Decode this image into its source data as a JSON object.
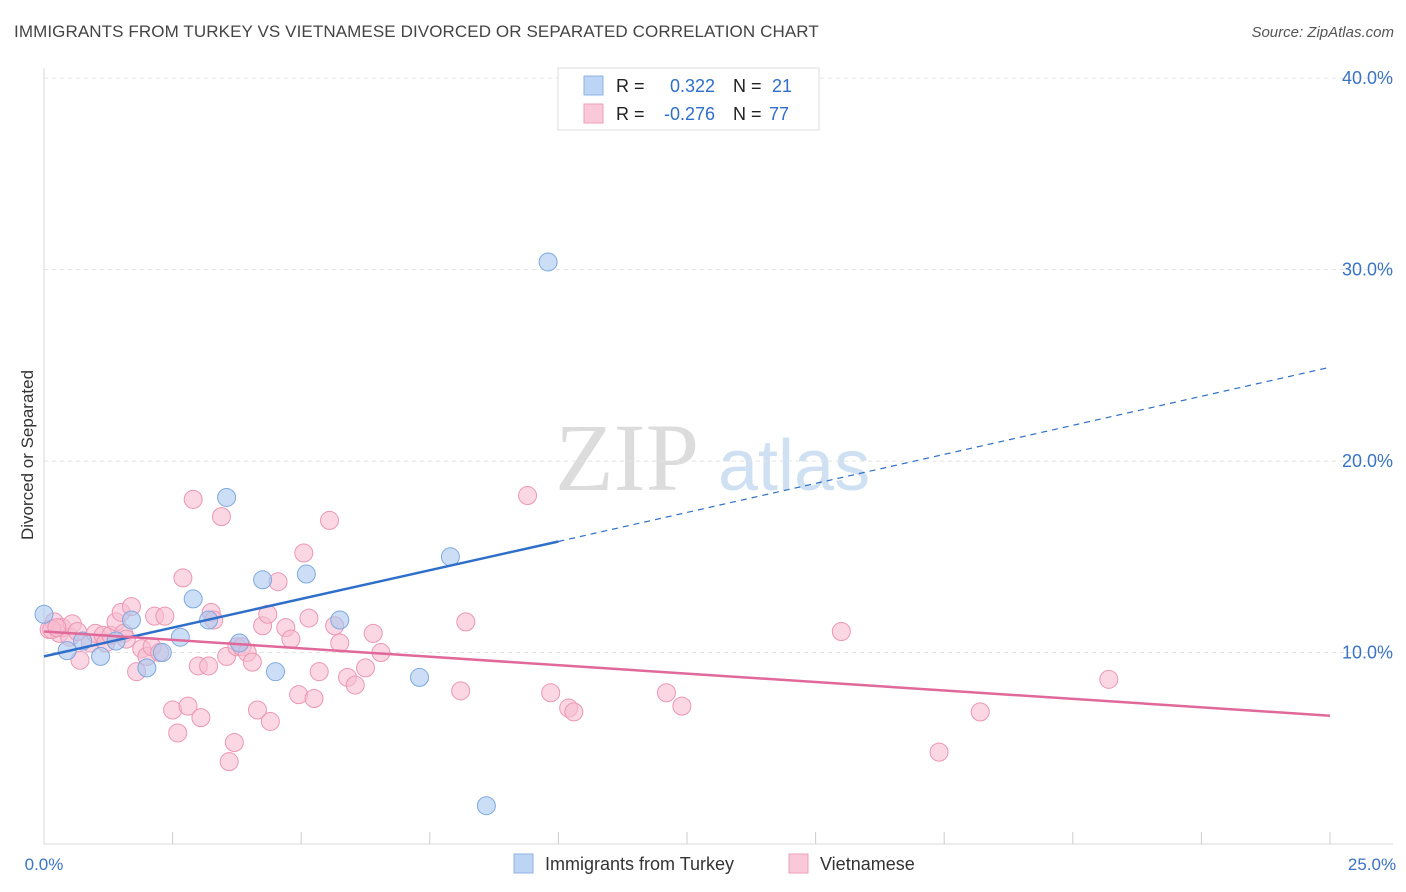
{
  "chart_data": {
    "type": "scatter",
    "title": "IMMIGRANTS FROM TURKEY VS VIETNAMESE DIVORCED OR SEPARATED CORRELATION CHART",
    "source": "Source: ZipAtlas.com",
    "watermark": {
      "zip": "ZIP",
      "atlas": "atlas"
    },
    "ylabel": "Divorced or Separated",
    "xlim": [
      0,
      25
    ],
    "ylim": [
      0,
      41
    ],
    "x_tick_labels": [
      "0.0%",
      "25.0%"
    ],
    "y_ticks": [
      10,
      20,
      30,
      40
    ],
    "y_tick_labels": [
      "10.0%",
      "20.0%",
      "30.0%",
      "40.0%"
    ],
    "grid": true,
    "legend_position": "top-center",
    "series": [
      {
        "name": "Immigrants from Turkey",
        "color": "#a9c8f0",
        "stroke": "#7fa9df",
        "line_color": "#2f6fc9",
        "stats": {
          "r_label": "R =",
          "r_value": "0.322",
          "n_label": "N =",
          "n_value": "21"
        },
        "trend": {
          "x0": 0,
          "y0": 9.8,
          "x1": 10,
          "y1": 15.8,
          "x_extend": 25,
          "y_extend": 24.9
        },
        "points": [
          [
            0.0,
            12.0
          ],
          [
            0.45,
            10.1
          ],
          [
            0.75,
            10.6
          ],
          [
            1.1,
            9.8
          ],
          [
            1.4,
            10.6
          ],
          [
            1.7,
            11.7
          ],
          [
            2.0,
            9.2
          ],
          [
            2.3,
            10.0
          ],
          [
            2.65,
            10.8
          ],
          [
            2.9,
            12.8
          ],
          [
            3.2,
            11.7
          ],
          [
            3.55,
            18.1
          ],
          [
            3.8,
            10.5
          ],
          [
            4.25,
            13.8
          ],
          [
            4.5,
            9.0
          ],
          [
            5.1,
            14.1
          ],
          [
            5.75,
            11.7
          ],
          [
            7.3,
            8.7
          ],
          [
            7.9,
            15.0
          ],
          [
            8.6,
            2.0
          ],
          [
            9.8,
            30.4
          ]
        ]
      },
      {
        "name": "Vietnamese",
        "color": "#f7bcd0",
        "stroke": "#ec97b3",
        "line_color": "#e0699a",
        "stats": {
          "r_label": "R =",
          "r_value": "-0.276",
          "n_label": "N =",
          "n_value": "77"
        },
        "trend": {
          "x0": 0,
          "y0": 11.1,
          "x1": 25,
          "y1": 6.7
        },
        "points": [
          [
            0.1,
            11.2
          ],
          [
            0.2,
            11.6
          ],
          [
            0.3,
            11.0
          ],
          [
            0.35,
            11.3
          ],
          [
            0.5,
            10.8
          ],
          [
            0.55,
            11.5
          ],
          [
            0.65,
            11.1
          ],
          [
            0.7,
            9.6
          ],
          [
            0.9,
            10.5
          ],
          [
            1.0,
            11.0
          ],
          [
            1.15,
            10.9
          ],
          [
            1.2,
            10.5
          ],
          [
            1.3,
            10.9
          ],
          [
            1.4,
            11.6
          ],
          [
            1.5,
            12.1
          ],
          [
            1.55,
            11.0
          ],
          [
            1.6,
            10.7
          ],
          [
            1.7,
            12.4
          ],
          [
            1.8,
            9.0
          ],
          [
            1.9,
            10.2
          ],
          [
            2.0,
            9.8
          ],
          [
            2.1,
            10.3
          ],
          [
            2.15,
            11.9
          ],
          [
            2.25,
            10.0
          ],
          [
            2.35,
            11.9
          ],
          [
            2.5,
            7.0
          ],
          [
            2.6,
            5.8
          ],
          [
            2.7,
            13.9
          ],
          [
            2.8,
            7.2
          ],
          [
            2.9,
            18.0
          ],
          [
            3.0,
            9.3
          ],
          [
            3.05,
            6.6
          ],
          [
            3.2,
            9.3
          ],
          [
            3.25,
            12.1
          ],
          [
            3.3,
            11.7
          ],
          [
            3.45,
            17.1
          ],
          [
            3.55,
            9.8
          ],
          [
            3.6,
            4.3
          ],
          [
            3.7,
            5.3
          ],
          [
            3.75,
            10.3
          ],
          [
            3.85,
            10.3
          ],
          [
            3.95,
            10.0
          ],
          [
            4.05,
            9.5
          ],
          [
            4.15,
            7.0
          ],
          [
            4.25,
            11.4
          ],
          [
            4.35,
            12.0
          ],
          [
            4.4,
            6.4
          ],
          [
            4.55,
            13.7
          ],
          [
            4.7,
            11.3
          ],
          [
            4.8,
            10.7
          ],
          [
            4.95,
            7.8
          ],
          [
            5.05,
            15.2
          ],
          [
            5.15,
            11.8
          ],
          [
            5.25,
            7.6
          ],
          [
            5.35,
            9.0
          ],
          [
            5.55,
            16.9
          ],
          [
            5.65,
            11.4
          ],
          [
            5.75,
            10.5
          ],
          [
            5.9,
            8.7
          ],
          [
            6.05,
            8.3
          ],
          [
            6.25,
            9.2
          ],
          [
            6.4,
            11.0
          ],
          [
            6.55,
            10.0
          ],
          [
            8.1,
            8.0
          ],
          [
            8.2,
            11.6
          ],
          [
            9.4,
            18.2
          ],
          [
            9.85,
            7.9
          ],
          [
            10.2,
            7.1
          ],
          [
            10.3,
            6.9
          ],
          [
            12.1,
            7.9
          ],
          [
            12.4,
            7.2
          ],
          [
            15.5,
            11.1
          ],
          [
            17.4,
            4.8
          ],
          [
            18.2,
            6.9
          ],
          [
            20.7,
            8.6
          ],
          [
            0.15,
            11.2
          ],
          [
            0.25,
            11.3
          ]
        ]
      }
    ]
  }
}
